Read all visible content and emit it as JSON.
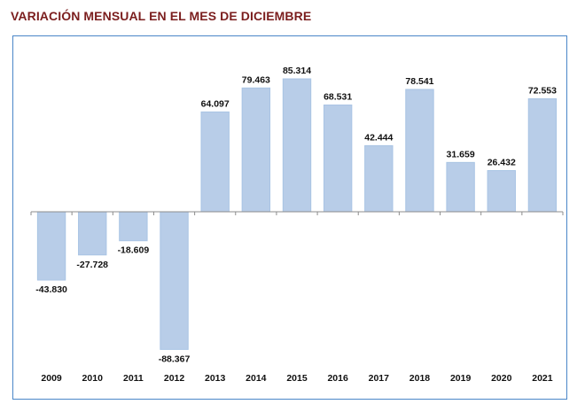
{
  "chart_data": {
    "type": "bar",
    "title": "VARIACIÓN MENSUAL EN EL MES DE DICIEMBRE",
    "xlabel": "",
    "ylabel": "",
    "categories": [
      "2009",
      "2010",
      "2011",
      "2012",
      "2013",
      "2014",
      "2015",
      "2016",
      "2017",
      "2018",
      "2019",
      "2020",
      "2021"
    ],
    "values": [
      -43830,
      -27728,
      -18609,
      -88367,
      64097,
      79463,
      85314,
      68531,
      42444,
      78541,
      31659,
      26432,
      72553
    ],
    "value_labels": [
      "-43.830",
      "-27.728",
      "-18.609",
      "-88.367",
      "64.097",
      "79.463",
      "85.314",
      "68.531",
      "42.444",
      "78.541",
      "31.659",
      "26.432",
      "72.553"
    ],
    "ylim": [
      -95000,
      95000
    ],
    "grid": false,
    "legend": "none",
    "colors": {
      "bar": "#b8cde8",
      "bar_edge": "#a9c4e4",
      "title": "#7b1e1e",
      "frame": "#4a86c8",
      "axis": "#8c8c8c"
    }
  }
}
